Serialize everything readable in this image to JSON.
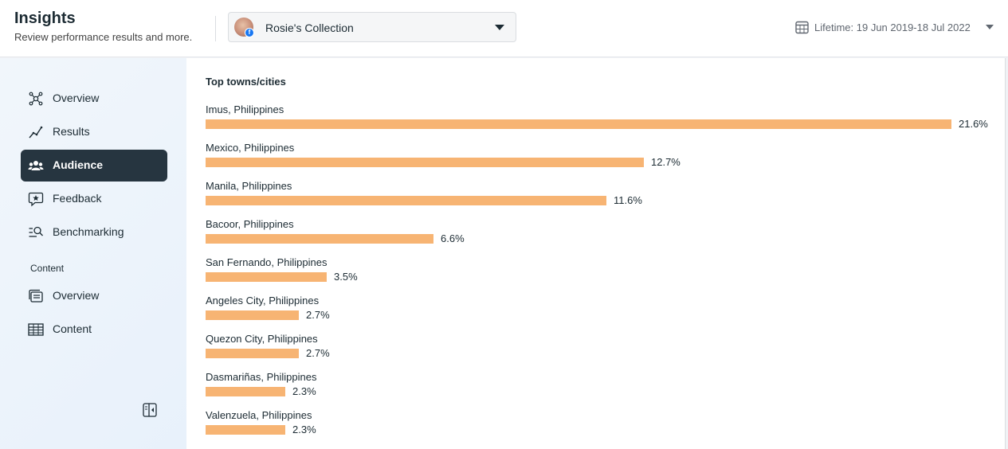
{
  "header": {
    "title": "Insights",
    "subtitle": "Review performance results and more.",
    "account": {
      "name": "Rosie's Collection",
      "badge": "f"
    },
    "date_range": "Lifetime: 19 Jun 2019-18 Jul 2022"
  },
  "sidebar": {
    "items": [
      {
        "label": "Overview",
        "icon": "network-icon",
        "active": false
      },
      {
        "label": "Results",
        "icon": "trend-line-icon",
        "active": false
      },
      {
        "label": "Audience",
        "icon": "people-icon",
        "active": true
      },
      {
        "label": "Feedback",
        "icon": "star-bubble-icon",
        "active": false
      },
      {
        "label": "Benchmarking",
        "icon": "list-search-icon",
        "active": false
      }
    ],
    "section_label": "Content",
    "content_items": [
      {
        "label": "Overview",
        "icon": "stacked-cards-icon",
        "active": false
      },
      {
        "label": "Content",
        "icon": "table-icon",
        "active": false
      }
    ]
  },
  "main": {
    "card_title": "Top towns/cities",
    "bar_color": "#f7b473",
    "cities": [
      {
        "name": "Imus, Philippines",
        "value": 21.6,
        "label": "21.6%"
      },
      {
        "name": "Mexico, Philippines",
        "value": 12.7,
        "label": "12.7%"
      },
      {
        "name": "Manila, Philippines",
        "value": 11.6,
        "label": "11.6%"
      },
      {
        "name": "Bacoor, Philippines",
        "value": 6.6,
        "label": "6.6%"
      },
      {
        "name": "San Fernando, Philippines",
        "value": 3.5,
        "label": "3.5%"
      },
      {
        "name": "Angeles City, Philippines",
        "value": 2.7,
        "label": "2.7%"
      },
      {
        "name": "Quezon City, Philippines",
        "value": 2.7,
        "label": "2.7%"
      },
      {
        "name": "Dasmariñas, Philippines",
        "value": 2.3,
        "label": "2.3%"
      },
      {
        "name": "Valenzuela, Philippines",
        "value": 2.3,
        "label": "2.3%"
      }
    ]
  }
}
